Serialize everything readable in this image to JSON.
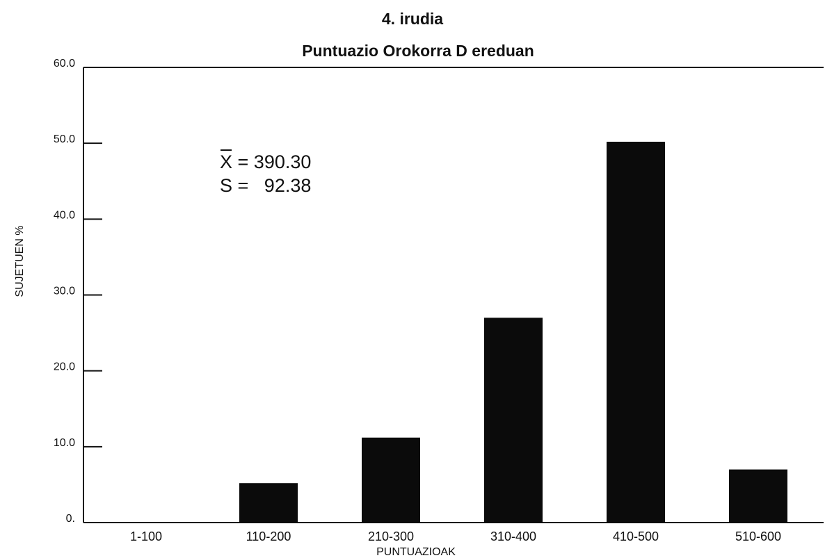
{
  "figure_label": "4. irudia",
  "stats": {
    "mean_symbol": "X",
    "mean_value": "= 390.30",
    "sd_label": "S =",
    "sd_value": "92.38"
  },
  "chart_data": {
    "type": "bar",
    "title": "Puntuazio Orokorra D ereduan",
    "xlabel": "PUNTUAZIOAK",
    "ylabel": "SUJETUEN %",
    "categories": [
      "1-100",
      "110-200",
      "210-300",
      "310-400",
      "410-500",
      "510-600"
    ],
    "values": [
      0,
      5.2,
      11.2,
      27.0,
      50.2,
      7.0
    ],
    "ylim": [
      0,
      60
    ],
    "yticks": [
      0,
      10,
      20,
      30,
      40,
      50,
      60
    ],
    "ytick_labels": [
      "0.",
      "10.0",
      "20.0",
      "30.0",
      "40.0",
      "50.0",
      "60.0"
    ],
    "bar_color": "#0b0b0b",
    "grid": false,
    "legend": "none"
  }
}
